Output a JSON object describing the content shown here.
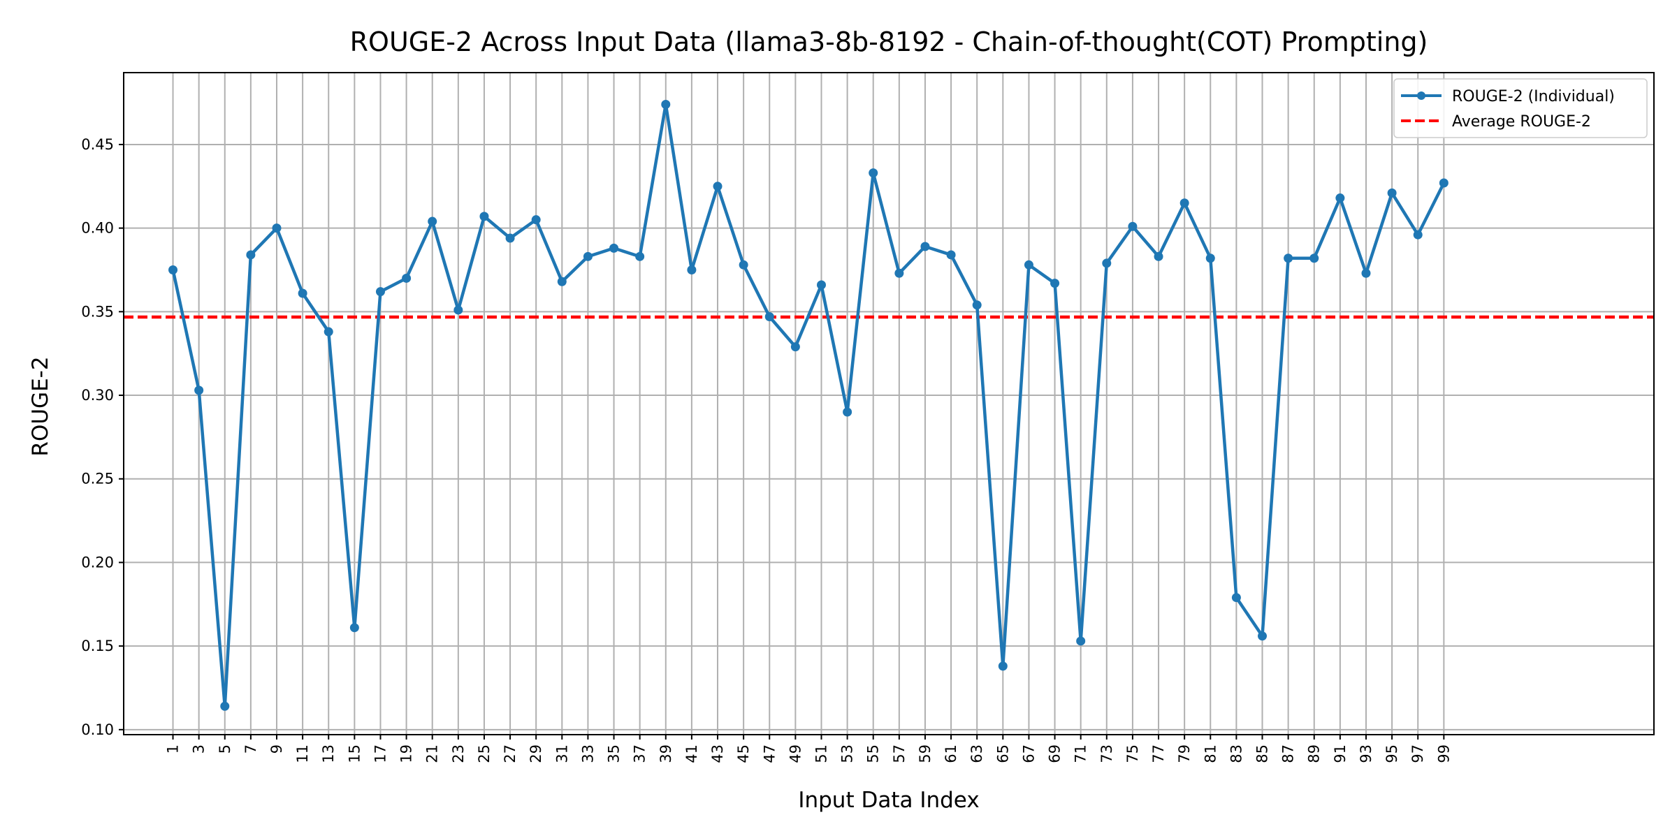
{
  "chart_data": {
    "type": "line",
    "title": "ROUGE-2 Across Input Data (llama3-8b-8192 - Chain-of-thought(COT) Prompting)",
    "xlabel": "Input Data Index",
    "ylabel": "ROUGE-2",
    "x": [
      1,
      3,
      5,
      7,
      9,
      11,
      13,
      15,
      17,
      19,
      21,
      23,
      25,
      27,
      29,
      31,
      33,
      35,
      37,
      39,
      41,
      43,
      45,
      47,
      49,
      51,
      53,
      55,
      57,
      59,
      61,
      63,
      65,
      67,
      69,
      71,
      73,
      75,
      77,
      79,
      81,
      83,
      85,
      87,
      89,
      91,
      93,
      95,
      97,
      99
    ],
    "x_tick_labels": [
      "1",
      "3",
      "5",
      "7",
      "9",
      "11",
      "13",
      "15",
      "17",
      "19",
      "21",
      "23",
      "25",
      "27",
      "29",
      "31",
      "33",
      "35",
      "37",
      "39",
      "41",
      "43",
      "45",
      "47",
      "49",
      "51",
      "53",
      "55",
      "57",
      "59",
      "61",
      "63",
      "65",
      "67",
      "69",
      "71",
      "73",
      "75",
      "77",
      "79",
      "81",
      "83",
      "85",
      "87",
      "89",
      "91",
      "93",
      "95",
      "97",
      "99"
    ],
    "y_ticks": [
      0.1,
      0.15,
      0.2,
      0.25,
      0.3,
      0.35,
      0.4,
      0.45
    ],
    "y_tick_labels": [
      "0.10",
      "0.15",
      "0.20",
      "0.25",
      "0.30",
      "0.35",
      "0.40",
      "0.45"
    ],
    "ylim": [
      0.097,
      0.493
    ],
    "xlim": [
      -2.8,
      115.2
    ],
    "grid": true,
    "legend_position": "top-right",
    "series": [
      {
        "name": "ROUGE-2 (Individual)",
        "color": "#1f77b4",
        "style": "solid-with-markers",
        "values": [
          0.375,
          0.303,
          0.114,
          0.384,
          0.4,
          0.361,
          0.338,
          0.161,
          0.362,
          0.37,
          0.404,
          0.351,
          0.407,
          0.394,
          0.405,
          0.368,
          0.383,
          0.388,
          0.383,
          0.474,
          0.375,
          0.425,
          0.378,
          0.347,
          0.329,
          0.366,
          0.29,
          0.433,
          0.373,
          0.389,
          0.384,
          0.354,
          0.138,
          0.378,
          0.367,
          0.153,
          0.379,
          0.401,
          0.383,
          0.415,
          0.382,
          0.179,
          0.156,
          0.382,
          0.382,
          0.418,
          0.373,
          0.421,
          0.396,
          0.427
        ]
      },
      {
        "name": "Average ROUGE-2",
        "color": "#ff0000",
        "style": "dashed",
        "y": 0.3468
      }
    ]
  }
}
